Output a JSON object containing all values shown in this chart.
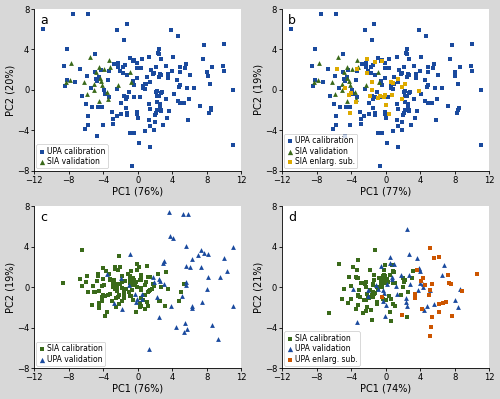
{
  "xlim": [
    -12,
    12
  ],
  "ylim": [
    -8,
    8
  ],
  "xticks": [
    -12,
    -8,
    -4,
    0,
    4,
    8,
    12
  ],
  "yticks": [
    -8,
    -4,
    0,
    4,
    8
  ],
  "panels": [
    {
      "label": "a",
      "xlabel": "PC1 (76%)",
      "ylabel": "PC2 (20%)",
      "legend_loc": "lower left",
      "series": [
        {
          "name": "UPA calibration",
          "color": "#1a4a9e",
          "marker": "s",
          "size": 10,
          "zorder": 2
        },
        {
          "name": "SIA validation",
          "color": "#3a6a1a",
          "marker": "^",
          "size": 12,
          "zorder": 3
        }
      ]
    },
    {
      "label": "b",
      "xlabel": "PC1 (77%)",
      "ylabel": "PC2 (19%)",
      "legend_loc": "lower left",
      "series": [
        {
          "name": "UPA calibration",
          "color": "#1a4a9e",
          "marker": "s",
          "size": 10,
          "zorder": 2
        },
        {
          "name": "SIA validation",
          "color": "#3a6a1a",
          "marker": "^",
          "size": 12,
          "zorder": 3
        },
        {
          "name": "SIA enlarg. sub.",
          "color": "#ddaa00",
          "marker": "s",
          "size": 10,
          "zorder": 4
        }
      ]
    },
    {
      "label": "c",
      "xlabel": "PC1 (76%)",
      "ylabel": "PC2 (19%)",
      "legend_loc": "lower left",
      "series": [
        {
          "name": "SIA calibration",
          "color": "#3a6a1a",
          "marker": "s",
          "size": 10,
          "zorder": 2
        },
        {
          "name": "UPA validation",
          "color": "#1a4a9e",
          "marker": "^",
          "size": 12,
          "zorder": 3
        }
      ]
    },
    {
      "label": "d",
      "xlabel": "PC1 (74%)",
      "ylabel": "PC2 (21%)",
      "legend_loc": "lower left",
      "series": [
        {
          "name": "SIA calibration",
          "color": "#3a6a1a",
          "marker": "s",
          "size": 10,
          "zorder": 2
        },
        {
          "name": "UPA validation",
          "color": "#1a4a9e",
          "marker": "^",
          "size": 12,
          "zorder": 3
        },
        {
          "name": "UPA enlarg. sub.",
          "color": "#cc5500",
          "marker": "s",
          "size": 10,
          "zorder": 4
        }
      ]
    }
  ],
  "bg_color": "#d8d8d8",
  "panel_bg": "#ffffff",
  "tick_fontsize": 6,
  "label_fontsize": 7,
  "panel_label_fontsize": 9,
  "legend_fontsize": 5.5
}
